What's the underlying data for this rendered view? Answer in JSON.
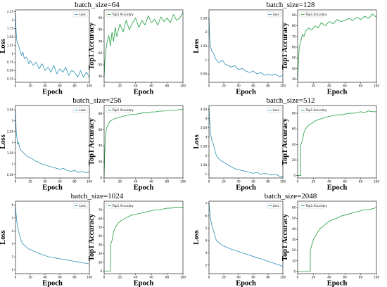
{
  "colors": {
    "loss": "#2e8fb5",
    "accuracy": "#1e9e3c"
  },
  "chart_data": [
    {
      "group_title": "batch_size=64",
      "loss": {
        "type": "line",
        "xlabel": "Epoch",
        "ylabel": "Loss",
        "legend": "Loss",
        "legend_position": "top-right",
        "xlim": [
          0,
          100
        ],
        "xticks": [
          0,
          20,
          40,
          60,
          80,
          100
        ],
        "ylim": [
          0.15,
          2.3
        ],
        "yticks": [
          0.25,
          0.5,
          0.75,
          1.0,
          1.25,
          1.5,
          1.75,
          2.0,
          2.25
        ],
        "x": [
          0,
          1,
          2,
          4,
          6,
          8,
          10,
          12,
          15,
          18,
          20,
          24,
          28,
          32,
          36,
          40,
          44,
          48,
          52,
          56,
          60,
          64,
          68,
          72,
          76,
          80,
          84,
          88,
          92,
          96,
          100
        ],
        "values": [
          2.2,
          1.6,
          1.35,
          1.25,
          1.1,
          0.95,
          1.05,
          0.85,
          0.9,
          0.7,
          0.8,
          0.65,
          0.75,
          0.55,
          0.7,
          0.5,
          0.6,
          0.45,
          0.65,
          0.4,
          0.55,
          0.45,
          0.6,
          0.35,
          0.5,
          0.45,
          0.3,
          0.5,
          0.3,
          0.45,
          0.3
        ]
      },
      "accuracy": {
        "type": "line",
        "xlabel": "Epoch",
        "ylabel": "Top1 Accuracy",
        "legend": "Top1 Accuracy",
        "legend_position": "top-left",
        "xlim": [
          0,
          100
        ],
        "xticks": [
          0,
          20,
          40,
          60,
          80,
          100
        ],
        "ylim": [
          35,
          97
        ],
        "yticks": [
          40,
          50,
          60,
          70,
          80,
          90
        ],
        "x": [
          0,
          1,
          2,
          4,
          6,
          8,
          10,
          12,
          14,
          16,
          20,
          24,
          28,
          32,
          36,
          40,
          44,
          48,
          52,
          56,
          60,
          64,
          68,
          72,
          76,
          80,
          84,
          88,
          92,
          96,
          100
        ],
        "values": [
          40,
          55,
          62,
          70,
          75,
          66,
          78,
          70,
          82,
          74,
          85,
          78,
          88,
          80,
          86,
          90,
          82,
          88,
          84,
          92,
          86,
          89,
          84,
          91,
          87,
          90,
          86,
          93,
          88,
          90,
          95
        ]
      }
    },
    {
      "group_title": "batch_size=128",
      "loss": {
        "type": "line",
        "xlabel": "Epoch",
        "ylabel": "Loss",
        "legend": "Loss",
        "legend_position": "top-right",
        "xlim": [
          0,
          100
        ],
        "xticks": [
          0,
          20,
          40,
          60,
          80,
          100
        ],
        "ylim": [
          0.2,
          2.8
        ],
        "yticks": [
          0.5,
          1.0,
          1.5,
          2.0,
          2.5
        ],
        "x": [
          0,
          1,
          2,
          4,
          6,
          8,
          10,
          14,
          18,
          22,
          26,
          30,
          35,
          40,
          45,
          50,
          55,
          60,
          65,
          70,
          75,
          80,
          85,
          90,
          95,
          100
        ],
        "values": [
          2.5,
          1.8,
          1.5,
          1.3,
          1.25,
          1.1,
          1.0,
          0.9,
          1.0,
          0.85,
          0.8,
          0.75,
          0.8,
          0.65,
          0.7,
          0.6,
          0.55,
          0.6,
          0.5,
          0.55,
          0.45,
          0.5,
          0.45,
          0.5,
          0.4,
          0.45
        ]
      },
      "accuracy": {
        "type": "line",
        "xlabel": "Epoch",
        "ylabel": "Top1 Accuracy",
        "legend": "Top1 Accuracy",
        "legend_position": "top-left",
        "xlim": [
          0,
          100
        ],
        "xticks": [
          0,
          20,
          40,
          60,
          80,
          100
        ],
        "ylim": [
          27,
          95
        ],
        "yticks": [
          30,
          40,
          50,
          60,
          70,
          80,
          90
        ],
        "x": [
          0,
          1,
          2,
          4,
          6,
          8,
          10,
          14,
          18,
          22,
          26,
          30,
          35,
          40,
          45,
          50,
          55,
          60,
          65,
          70,
          75,
          80,
          85,
          90,
          95,
          100
        ],
        "values": [
          30,
          45,
          60,
          65,
          72,
          70,
          75,
          78,
          76,
          80,
          78,
          83,
          80,
          84,
          82,
          86,
          84,
          85,
          87,
          85,
          88,
          86,
          89,
          87,
          91,
          88
        ]
      }
    },
    {
      "group_title": "batch_size=256",
      "loss": {
        "type": "line",
        "xlabel": "Epoch",
        "ylabel": "Loss",
        "legend": "Loss",
        "legend_position": "top-right",
        "xlim": [
          0,
          100
        ],
        "xticks": [
          0,
          20,
          40,
          60,
          80,
          100
        ],
        "ylim": [
          0.35,
          3.7
        ],
        "yticks": [
          0.5,
          1.0,
          1.5,
          2.0,
          2.5,
          3.0,
          3.5
        ],
        "x": [
          0,
          1,
          2,
          3,
          4,
          6,
          8,
          10,
          14,
          18,
          22,
          26,
          30,
          35,
          40,
          45,
          50,
          55,
          60,
          65,
          70,
          75,
          80,
          85,
          90,
          95,
          100
        ],
        "values": [
          3.5,
          2.5,
          2.2,
          1.9,
          2.0,
          1.7,
          1.6,
          1.55,
          1.4,
          1.3,
          1.25,
          1.15,
          1.1,
          1.0,
          0.95,
          0.9,
          0.85,
          0.8,
          0.75,
          0.8,
          0.7,
          0.65,
          0.7,
          0.6,
          0.65,
          0.6,
          0.62
        ]
      },
      "accuracy": {
        "type": "line",
        "xlabel": "Epoch",
        "ylabel": "Top1 Accuracy",
        "legend": "Top1 Accuracy",
        "legend_position": "top-left",
        "xlim": [
          0,
          100
        ],
        "xticks": [
          0,
          20,
          40,
          60,
          80,
          100
        ],
        "ylim": [
          0,
          90
        ],
        "yticks": [
          0,
          20,
          40,
          60,
          80
        ],
        "x": [
          0,
          1,
          2,
          3,
          5,
          7,
          10,
          14,
          18,
          22,
          26,
          30,
          35,
          40,
          45,
          50,
          55,
          60,
          65,
          70,
          75,
          80,
          85,
          90,
          95,
          100
        ],
        "values": [
          3,
          40,
          55,
          62,
          66,
          70,
          72,
          74,
          75,
          76,
          77,
          78,
          79,
          79,
          80,
          81,
          81,
          82,
          82,
          83,
          83,
          84,
          84,
          84,
          85,
          85
        ]
      }
    },
    {
      "group_title": "batch_size=512",
      "loss": {
        "type": "line",
        "xlabel": "Epoch",
        "ylabel": "Loss",
        "legend": "Loss",
        "legend_position": "top-right",
        "xlim": [
          0,
          100
        ],
        "xticks": [
          0,
          20,
          40,
          60,
          80,
          100
        ],
        "ylim": [
          0.8,
          4.7
        ],
        "yticks": [
          1.0,
          1.5,
          2.0,
          2.5,
          3.0,
          3.5,
          4.0,
          4.5
        ],
        "x": [
          0,
          1,
          2,
          4,
          6,
          8,
          10,
          14,
          18,
          22,
          26,
          30,
          35,
          40,
          45,
          50,
          55,
          60,
          65,
          70,
          75,
          80,
          85,
          90,
          95,
          100
        ],
        "values": [
          4.6,
          3.8,
          3.2,
          2.8,
          2.6,
          2.3,
          2.0,
          1.8,
          1.7,
          1.6,
          1.5,
          1.4,
          1.3,
          1.25,
          1.2,
          1.15,
          1.1,
          1.05,
          1.1,
          1.0,
          1.05,
          1.0,
          0.95,
          1.0,
          0.9,
          0.85
        ]
      },
      "accuracy": {
        "type": "line",
        "xlabel": "Epoch",
        "ylabel": "Top1 Accuracy",
        "legend": "Top1 Accuracy",
        "legend_position": "top-left",
        "xlim": [
          0,
          100
        ],
        "xticks": [
          0,
          20,
          40,
          60,
          80,
          100
        ],
        "ylim": [
          -3,
          90
        ],
        "yticks": [
          0,
          20,
          40,
          60,
          80
        ],
        "x": [
          0,
          2,
          4,
          4.1,
          6,
          8,
          10,
          14,
          18,
          22,
          26,
          30,
          35,
          40,
          45,
          50,
          55,
          60,
          65,
          70,
          75,
          80,
          85,
          90,
          95,
          100
        ],
        "values": [
          0,
          0,
          0,
          40,
          45,
          55,
          60,
          65,
          67,
          70,
          72,
          73,
          75,
          76,
          77,
          78,
          78,
          79,
          80,
          80,
          81,
          82,
          81,
          83,
          82,
          82
        ]
      }
    },
    {
      "group_title": "batch_size=1024",
      "loss": {
        "type": "line",
        "xlabel": "Epoch",
        "ylabel": "Loss",
        "legend": "Loss",
        "legend_position": "top-right",
        "xlim": [
          0,
          100
        ],
        "xticks": [
          0,
          20,
          40,
          60,
          80,
          100
        ],
        "ylim": [
          0.7,
          6.3
        ],
        "yticks": [
          1,
          2,
          3,
          4,
          5,
          6
        ],
        "x": [
          0,
          1,
          2,
          4,
          6,
          8,
          10,
          14,
          18,
          22,
          26,
          30,
          35,
          40,
          45,
          50,
          55,
          60,
          65,
          70,
          75,
          80,
          85,
          90,
          95,
          100
        ],
        "values": [
          6.0,
          5.2,
          4.6,
          4.0,
          3.6,
          3.2,
          3.0,
          2.8,
          2.6,
          2.5,
          2.4,
          2.3,
          2.2,
          2.1,
          2.0,
          1.95,
          1.9,
          1.85,
          1.8,
          1.75,
          1.7,
          1.65,
          1.6,
          1.55,
          1.5,
          1.45
        ]
      },
      "accuracy": {
        "type": "line",
        "xlabel": "Epoch",
        "ylabel": "Top1 Accuracy",
        "legend": "Top1 Accuracy",
        "legend_position": "top-left",
        "xlim": [
          0,
          100
        ],
        "xticks": [
          0,
          20,
          40,
          60,
          80,
          100
        ],
        "ylim": [
          -3,
          80
        ],
        "yticks": [
          0,
          10,
          20,
          30,
          40,
          50,
          60,
          70
        ],
        "x": [
          0,
          4,
          8,
          8.1,
          10,
          12,
          14,
          18,
          22,
          26,
          30,
          35,
          40,
          45,
          50,
          55,
          60,
          65,
          70,
          75,
          80,
          85,
          90,
          95,
          100
        ],
        "values": [
          0,
          0,
          0,
          30,
          35,
          45,
          50,
          55,
          58,
          60,
          62,
          64,
          65,
          66,
          67,
          68,
          69,
          70,
          70,
          71,
          72,
          72,
          73,
          73,
          73
        ]
      }
    },
    {
      "group_title": "batch_size=2048",
      "loss": {
        "type": "line",
        "xlabel": "Epoch",
        "ylabel": "Loss",
        "legend": "Loss",
        "legend_position": "top-right",
        "xlim": [
          0,
          100
        ],
        "xticks": [
          0,
          20,
          40,
          60,
          80,
          100
        ],
        "ylim": [
          1.3,
          7.2
        ],
        "yticks": [
          2,
          3,
          4,
          5,
          6,
          7
        ],
        "x": [
          0,
          1,
          2,
          4,
          6,
          8,
          10,
          14,
          18,
          22,
          26,
          30,
          35,
          40,
          45,
          50,
          55,
          60,
          65,
          70,
          75,
          80,
          85,
          90,
          95,
          100
        ],
        "values": [
          7.0,
          6.4,
          5.8,
          5.2,
          4.8,
          4.4,
          4.0,
          3.8,
          3.6,
          3.5,
          3.4,
          3.3,
          3.2,
          3.1,
          3.0,
          2.9,
          2.8,
          2.7,
          2.6,
          2.5,
          2.4,
          2.3,
          2.2,
          2.1,
          2.0,
          1.9
        ]
      },
      "accuracy": {
        "type": "line",
        "xlabel": "Epoch",
        "ylabel": "Top1 Accuracy",
        "legend": "Top1 Accuracy",
        "legend_position": "top-left",
        "xlim": [
          0,
          100
        ],
        "xticks": [
          0,
          20,
          40,
          60,
          80,
          100
        ],
        "ylim": [
          -2,
          66
        ],
        "yticks": [
          0,
          10,
          20,
          30,
          40,
          50,
          60
        ],
        "x": [
          0,
          8,
          16,
          16.1,
          18,
          20,
          24,
          28,
          32,
          36,
          40,
          45,
          50,
          55,
          60,
          65,
          70,
          75,
          80,
          85,
          90,
          95,
          100
        ],
        "values": [
          0,
          0,
          0,
          20,
          25,
          30,
          35,
          40,
          42,
          45,
          47,
          49,
          50,
          52,
          53,
          54,
          55,
          56,
          57,
          58,
          58,
          59,
          60
        ]
      }
    }
  ]
}
